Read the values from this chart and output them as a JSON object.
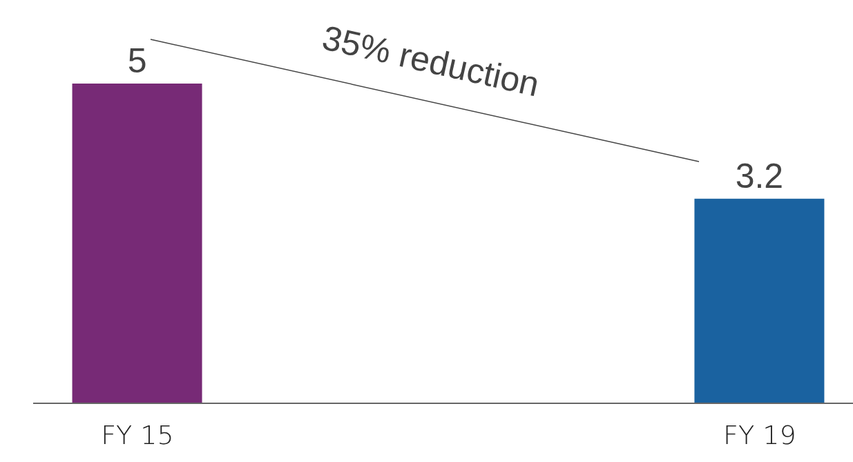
{
  "chart_data": {
    "type": "bar",
    "categories": [
      "FY 15",
      "FY 19"
    ],
    "values": [
      5,
      3.2
    ],
    "colors": [
      "#772a76",
      "#1a62a0"
    ],
    "data_labels": true,
    "annotations": [
      "35% reduction"
    ]
  }
}
